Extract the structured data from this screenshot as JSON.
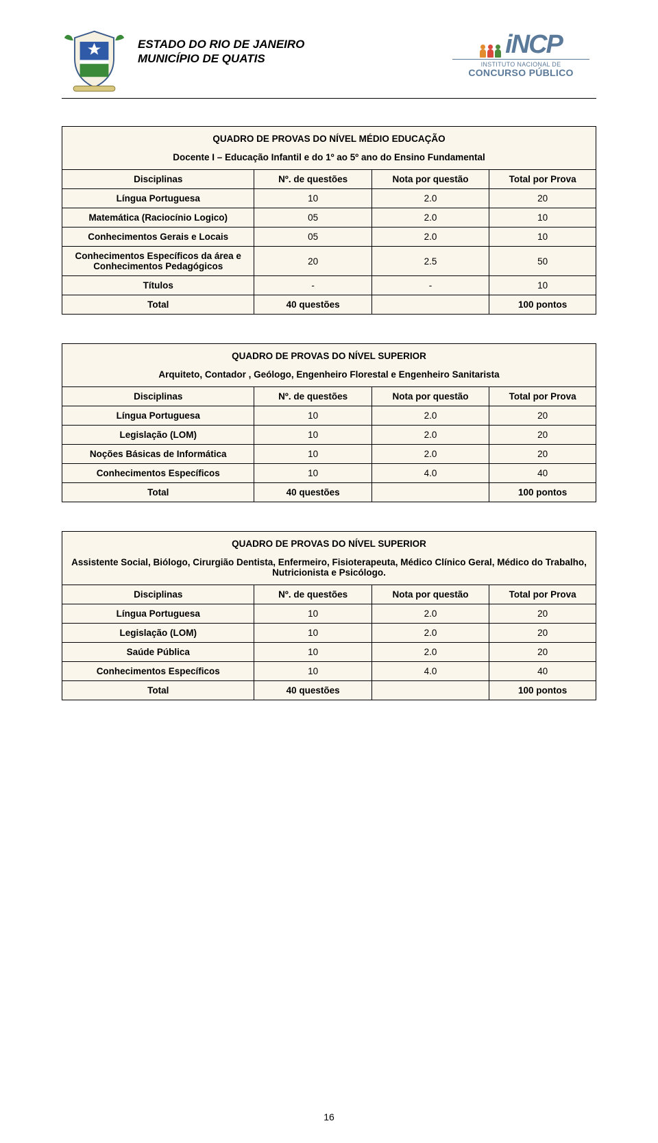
{
  "header": {
    "state": "ESTADO DO RIO DE JANEIRO",
    "city": "MUNICÍPIO DE QUATIS",
    "brand_main": "iNCP",
    "brand_line1": "INSTITUTO NACIONAL DE",
    "brand_line2": "CONCURSO PÚBLICO",
    "people_colors": [
      "#e28b2f",
      "#d94a3d",
      "#4a8c3b"
    ]
  },
  "colors": {
    "table_bg": "#faf6eb",
    "brand_text": "#5b7a99"
  },
  "columns": [
    "Disciplinas",
    "Nº. de questões",
    "Nota por questão",
    "Total por Prova"
  ],
  "tables": [
    {
      "title": "QUADRO DE PROVAS DO NÍVEL MÉDIO EDUCAÇÃO",
      "subtitle": "Docente I – Educação Infantil e do 1º ao 5º ano do Ensino Fundamental",
      "rows": [
        {
          "label": "Língua Portuguesa",
          "n": "10",
          "per": "2.0",
          "total": "20"
        },
        {
          "label": "Matemática (Raciocínio Logico)",
          "n": "05",
          "per": "2.0",
          "total": "10"
        },
        {
          "label": "Conhecimentos Gerais e Locais",
          "n": "05",
          "per": "2.0",
          "total": "10"
        },
        {
          "label": "Conhecimentos Específicos da área e Conhecimentos Pedagógicos",
          "n": "20",
          "per": "2.5",
          "total": "50"
        },
        {
          "label": "Títulos",
          "n": "-",
          "per": "-",
          "total": "10"
        }
      ],
      "total": {
        "label": "Total",
        "n": "40 questões",
        "total": "100 pontos"
      }
    },
    {
      "title": "QUADRO DE PROVAS DO NÍVEL SUPERIOR",
      "subtitle": "Arquiteto, Contador , Geólogo, Engenheiro Florestal e Engenheiro Sanitarista",
      "rows": [
        {
          "label": "Língua Portuguesa",
          "n": "10",
          "per": "2.0",
          "total": "20"
        },
        {
          "label": "Legislação (LOM)",
          "n": "10",
          "per": "2.0",
          "total": "20"
        },
        {
          "label": "Noções Básicas de Informática",
          "n": "10",
          "per": "2.0",
          "total": "20"
        },
        {
          "label": "Conhecimentos Específicos",
          "n": "10",
          "per": "4.0",
          "total": "40"
        }
      ],
      "total": {
        "label": "Total",
        "n": "40 questões",
        "total": "100 pontos"
      }
    },
    {
      "title": "QUADRO DE PROVAS DO NÍVEL SUPERIOR",
      "subtitle": "Assistente Social, Biólogo, Cirurgião Dentista, Enfermeiro, Fisioterapeuta, Médico Clínico Geral, Médico do Trabalho, Nutricionista e Psicólogo.",
      "rows": [
        {
          "label": "Língua Portuguesa",
          "n": "10",
          "per": "2.0",
          "total": "20"
        },
        {
          "label": "Legislação (LOM)",
          "n": "10",
          "per": "2.0",
          "total": "20"
        },
        {
          "label": "Saúde Pública",
          "n": "10",
          "per": "2.0",
          "total": "20"
        },
        {
          "label": "Conhecimentos Específicos",
          "n": "10",
          "per": "4.0",
          "total": "40"
        }
      ],
      "total": {
        "label": "Total",
        "n": "40 questões",
        "total": "100 pontos"
      }
    }
  ],
  "page_number": "16"
}
